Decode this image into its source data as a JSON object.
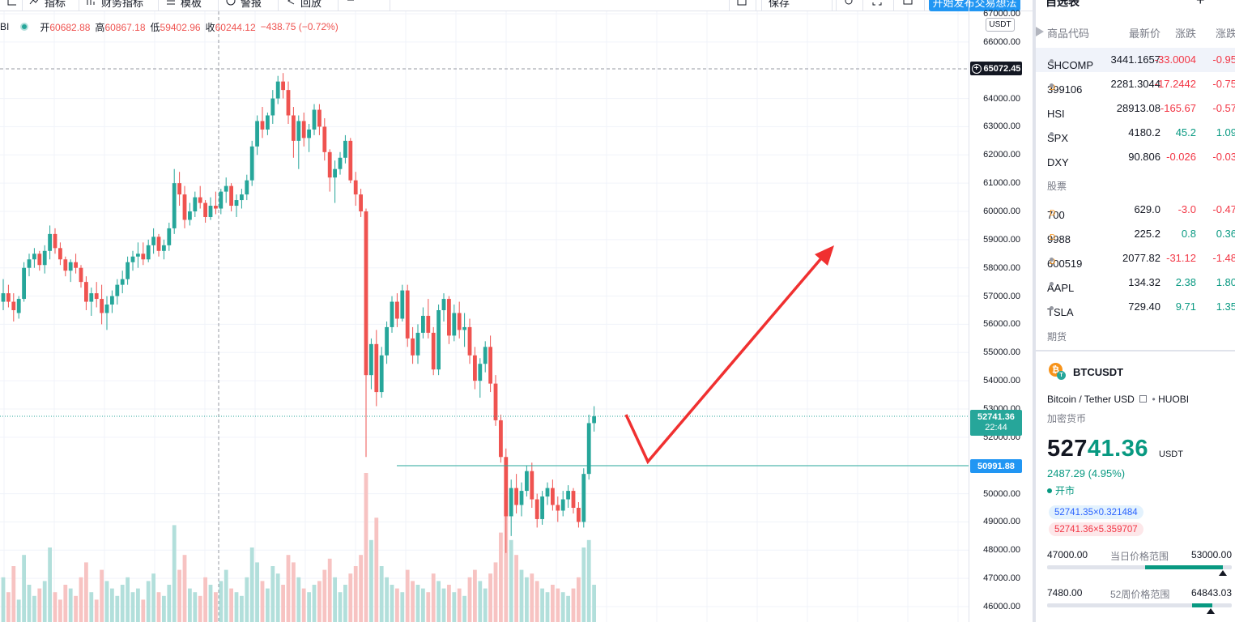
{
  "toolbar": {
    "items": [
      "指标",
      "财务指标",
      "模板",
      "警报",
      "回放"
    ],
    "layout_label": "保存",
    "publish_label": "开始发布交易想法"
  },
  "legend": {
    "symbol_fragment": "BI",
    "open_label": "开",
    "open": "60682.88",
    "high_label": "高",
    "high": "60867.18",
    "low_label": "低",
    "low": "59402.96",
    "close_label": "收",
    "close": "60244.12",
    "change": "−438.75 (−0.72%)",
    "currency": "USDT"
  },
  "price_axis": {
    "ticks": [
      "67000.00",
      "66000.00",
      "64000.00",
      "63000.00",
      "62000.00",
      "61000.00",
      "60000.00",
      "59000.00",
      "58000.00",
      "57000.00",
      "56000.00",
      "55000.00",
      "54000.00",
      "53000.00",
      "52000.00",
      "50000.00",
      "49000.00",
      "48000.00",
      "47000.00",
      "46000.00"
    ],
    "crosshair_price": "65072.45",
    "last_price": "52741.36",
    "countdown": "22:44",
    "line_price": "50991.88"
  },
  "chart_data": {
    "type": "candlestick",
    "y_range": [
      45700,
      67000
    ],
    "line_level": 50991.88,
    "candles": [
      [
        56800,
        57600,
        56500,
        57100,
        12
      ],
      [
        57100,
        57400,
        56600,
        56800,
        8
      ],
      [
        56800,
        57100,
        56100,
        56500,
        15
      ],
      [
        56400,
        57000,
        56200,
        56900,
        6
      ],
      [
        56900,
        58200,
        56800,
        58000,
        18
      ],
      [
        58000,
        58500,
        57700,
        58300,
        10
      ],
      [
        58300,
        58700,
        58000,
        58500,
        7
      ],
      [
        58500,
        58600,
        57900,
        58100,
        9
      ],
      [
        58100,
        58800,
        57800,
        58600,
        11
      ],
      [
        58600,
        59500,
        58300,
        59200,
        20
      ],
      [
        59200,
        59400,
        58500,
        58700,
        8
      ],
      [
        58700,
        58900,
        58100,
        58300,
        6
      ],
      [
        58300,
        58400,
        57700,
        57900,
        10
      ],
      [
        57900,
        58300,
        57500,
        58200,
        9
      ],
      [
        58200,
        58500,
        57800,
        58000,
        7
      ],
      [
        58000,
        58100,
        57300,
        57500,
        12
      ],
      [
        57500,
        57700,
        56500,
        56800,
        16
      ],
      [
        56800,
        57300,
        56300,
        57100,
        8
      ],
      [
        57100,
        57500,
        56600,
        56900,
        6
      ],
      [
        56900,
        57400,
        56000,
        56400,
        14
      ],
      [
        56400,
        57000,
        55800,
        56700,
        11
      ],
      [
        56700,
        57200,
        56400,
        57000,
        9
      ],
      [
        57000,
        57600,
        56700,
        57400,
        7
      ],
      [
        57400,
        57900,
        57100,
        57600,
        10
      ],
      [
        57600,
        58400,
        57400,
        58200,
        12
      ],
      [
        58200,
        58600,
        57900,
        58400,
        8
      ],
      [
        58400,
        58900,
        58000,
        58500,
        9
      ],
      [
        58500,
        58900,
        58100,
        58300,
        6
      ],
      [
        58300,
        59000,
        58200,
        58800,
        11
      ],
      [
        58800,
        59400,
        58500,
        59100,
        13
      ],
      [
        59100,
        59200,
        58400,
        58600,
        8
      ],
      [
        58600,
        59000,
        58300,
        58800,
        7
      ],
      [
        58800,
        59600,
        58600,
        59400,
        10
      ],
      [
        59400,
        61500,
        59200,
        61000,
        26
      ],
      [
        61000,
        61400,
        60200,
        60600,
        14
      ],
      [
        60600,
        60900,
        59400,
        59700,
        18
      ],
      [
        59700,
        60300,
        59500,
        60000,
        9
      ],
      [
        60000,
        60700,
        59800,
        60500,
        8
      ],
      [
        60500,
        60900,
        60100,
        60300,
        7
      ],
      [
        60300,
        60400,
        59600,
        59800,
        12
      ],
      [
        59800,
        60500,
        59700,
        60200,
        10
      ],
      [
        60200,
        60700,
        59900,
        60100,
        8
      ],
      [
        60100,
        60800,
        59900,
        60700,
        11
      ],
      [
        60700,
        61200,
        60300,
        60900,
        14
      ],
      [
        60900,
        61000,
        60000,
        60200,
        9
      ],
      [
        60200,
        60600,
        59800,
        60400,
        8
      ],
      [
        60400,
        60800,
        60100,
        60600,
        7
      ],
      [
        60600,
        61300,
        60400,
        61100,
        12
      ],
      [
        61100,
        62500,
        60900,
        62300,
        20
      ],
      [
        62300,
        63400,
        62000,
        63200,
        16
      ],
      [
        63200,
        63700,
        62600,
        62900,
        11
      ],
      [
        62900,
        63500,
        62700,
        63400,
        9
      ],
      [
        63400,
        64300,
        63100,
        64000,
        15
      ],
      [
        64000,
        64800,
        63800,
        64600,
        13
      ],
      [
        64600,
        64900,
        64000,
        64300,
        10
      ],
      [
        64300,
        64600,
        63100,
        63400,
        18
      ],
      [
        63400,
        63700,
        61900,
        62500,
        16
      ],
      [
        62500,
        63400,
        61500,
        63200,
        12
      ],
      [
        63200,
        63500,
        62300,
        62600,
        9
      ],
      [
        62600,
        63100,
        62100,
        62900,
        8
      ],
      [
        62900,
        63800,
        62700,
        63600,
        10
      ],
      [
        63600,
        63800,
        62700,
        63000,
        11
      ],
      [
        63000,
        63300,
        61800,
        62100,
        14
      ],
      [
        62100,
        62200,
        60700,
        61200,
        17
      ],
      [
        61200,
        61800,
        60300,
        61500,
        12
      ],
      [
        61500,
        62100,
        61300,
        61900,
        8
      ],
      [
        61900,
        62700,
        61700,
        62500,
        10
      ],
      [
        62500,
        62600,
        61000,
        61100,
        13
      ],
      [
        61100,
        61400,
        60200,
        60600,
        15
      ],
      [
        60600,
        60800,
        59800,
        60000,
        18
      ],
      [
        60000,
        60100,
        51300,
        54200,
        40
      ],
      [
        54200,
        55500,
        53700,
        55300,
        22
      ],
      [
        55300,
        55800,
        53100,
        53600,
        28
      ],
      [
        53600,
        55200,
        53400,
        54900,
        15
      ],
      [
        54900,
        56100,
        54600,
        55900,
        12
      ],
      [
        55900,
        57000,
        55700,
        56800,
        10
      ],
      [
        56800,
        57100,
        55900,
        56200,
        9
      ],
      [
        56200,
        57400,
        56100,
        57200,
        8
      ],
      [
        57200,
        57400,
        55200,
        55500,
        14
      ],
      [
        55500,
        55900,
        54600,
        54900,
        11
      ],
      [
        54900,
        56000,
        54600,
        55700,
        10
      ],
      [
        55700,
        56600,
        55500,
        56300,
        9
      ],
      [
        56300,
        56900,
        55500,
        55700,
        8
      ],
      [
        55700,
        55900,
        54200,
        54400,
        13
      ],
      [
        54400,
        56700,
        54200,
        56500,
        11
      ],
      [
        56500,
        57100,
        56100,
        56900,
        9
      ],
      [
        56900,
        57000,
        55300,
        55600,
        10
      ],
      [
        55600,
        56700,
        55400,
        56400,
        8
      ],
      [
        56400,
        56800,
        55500,
        55800,
        9
      ],
      [
        55800,
        56400,
        55200,
        55900,
        7
      ],
      [
        55900,
        56200,
        54600,
        54900,
        12
      ],
      [
        54900,
        55200,
        53700,
        54000,
        14
      ],
      [
        54000,
        54800,
        53400,
        54600,
        11
      ],
      [
        54600,
        55400,
        54300,
        55200,
        9
      ],
      [
        55200,
        55600,
        53600,
        53900,
        13
      ],
      [
        53900,
        54200,
        52400,
        52600,
        16
      ],
      [
        52600,
        52800,
        51100,
        51300,
        24
      ],
      [
        51300,
        51600,
        47900,
        49200,
        34
      ],
      [
        49200,
        50500,
        48500,
        50200,
        22
      ],
      [
        50200,
        50700,
        49300,
        49600,
        18
      ],
      [
        49600,
        50400,
        49200,
        50100,
        14
      ],
      [
        50100,
        51000,
        49900,
        50800,
        12
      ],
      [
        50800,
        51100,
        49500,
        49800,
        13
      ],
      [
        49800,
        50000,
        48800,
        49100,
        11
      ],
      [
        49100,
        50100,
        48900,
        49900,
        9
      ],
      [
        49900,
        50400,
        49600,
        50200,
        8
      ],
      [
        50200,
        50500,
        49400,
        49600,
        10
      ],
      [
        49600,
        49900,
        49000,
        49400,
        9
      ],
      [
        49400,
        50100,
        49200,
        49800,
        8
      ],
      [
        49800,
        50300,
        49500,
        50100,
        7
      ],
      [
        50100,
        50200,
        49300,
        49500,
        9
      ],
      [
        49500,
        49700,
        48800,
        49000,
        12
      ],
      [
        49000,
        50900,
        48800,
        50700,
        20
      ],
      [
        50700,
        52800,
        50500,
        52500,
        22
      ],
      [
        52500,
        53100,
        52200,
        52741,
        10
      ]
    ]
  },
  "watchlist": {
    "title": "自选表",
    "headers": [
      "商品代码",
      "最新价",
      "涨跌",
      "涨跌"
    ],
    "rows": [
      {
        "symbol": "SHCOMP",
        "dot": true,
        "badge": "",
        "last": "3441.1657",
        "chg": "-33.0004",
        "pct": "-0.95",
        "dir": "down"
      },
      {
        "symbol": "399106",
        "dot": true,
        "badge": "D",
        "last": "2281.3044",
        "chg": "-17.2442",
        "pct": "-0.75",
        "dir": "down"
      },
      {
        "symbol": "HSI",
        "dot": false,
        "badge": "",
        "last": "28913.08",
        "chg": "-165.67",
        "pct": "-0.57",
        "dir": "down"
      },
      {
        "symbol": "SPX",
        "dot": true,
        "badge": "",
        "last": "4180.2",
        "chg": "45.2",
        "pct": "1.09",
        "dir": "up"
      },
      {
        "symbol": "DXY",
        "dot": false,
        "badge": "",
        "last": "90.806",
        "chg": "-0.026",
        "pct": "-0.03",
        "dir": "down"
      }
    ],
    "section_stocks": "股票",
    "stock_rows": [
      {
        "symbol": "700",
        "dot": false,
        "badge": "D",
        "last": "629.0",
        "chg": "-3.0",
        "pct": "-0.47",
        "dir": "down"
      },
      {
        "symbol": "9988",
        "dot": false,
        "badge": "D",
        "last": "225.2",
        "chg": "0.8",
        "pct": "0.36",
        "dir": "up"
      },
      {
        "symbol": "600519",
        "dot": true,
        "badge": "D",
        "last": "2077.82",
        "chg": "-31.12",
        "pct": "-1.48",
        "dir": "down"
      },
      {
        "symbol": "AAPL",
        "dot": true,
        "badge": "",
        "last": "134.32",
        "chg": "2.38",
        "pct": "1.80",
        "dir": "up"
      },
      {
        "symbol": "TSLA",
        "dot": true,
        "badge": "",
        "last": "729.40",
        "chg": "9.71",
        "pct": "1.35",
        "dir": "up"
      }
    ],
    "section_futures": "期货"
  },
  "details": {
    "symbol": "BTCUSDT",
    "description": "Bitcoin / Tether USD",
    "exchange": "HUOBI",
    "type": "加密货币",
    "price_main": "527",
    "price_hi": "41.36",
    "unit": "USDT",
    "change": "2487.29 (4.95%)",
    "status": "开市",
    "bid": "52741.35×0.321484",
    "ask": "52741.36×5.359707",
    "day_low": "47000.00",
    "day_label": "当日价格范围",
    "day_high": "53000.00",
    "day_position": 0.95,
    "year_low": "7480.00",
    "year_label": "52周价格范围",
    "year_high": "64843.03",
    "year_position": 0.786
  },
  "colors": {
    "up": "#26a69a",
    "down": "#ef5350",
    "accent": "#2196f3",
    "annotation": "#f03030"
  }
}
